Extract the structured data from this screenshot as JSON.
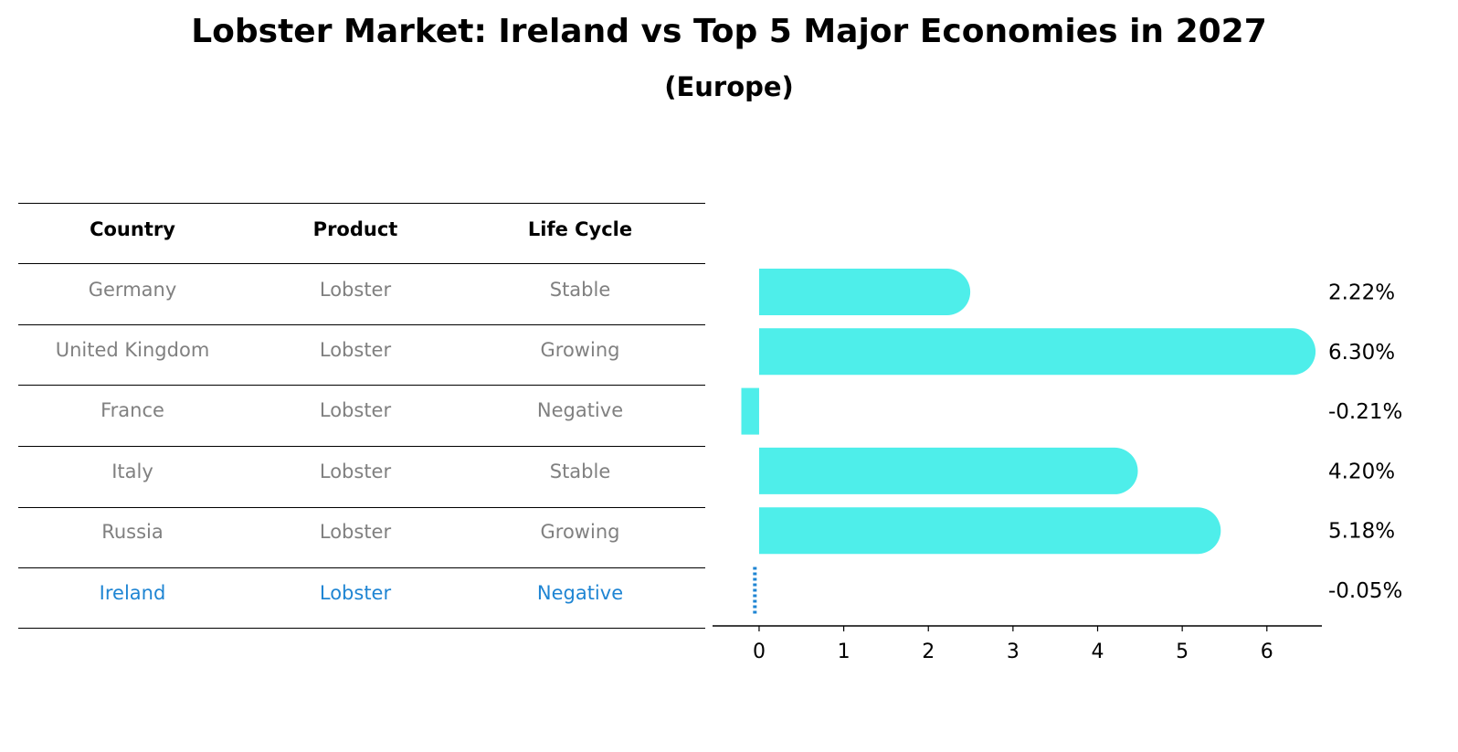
{
  "title": "Lobster Market: Ireland vs Top 5 Major Economies in 2027",
  "subtitle": "(Europe)",
  "table": {
    "headers": [
      "Country",
      "Product",
      "Life Cycle"
    ],
    "rows": [
      [
        "Germany",
        "Lobster",
        "Stable"
      ],
      [
        "United Kingdom",
        "Lobster",
        "Growing"
      ],
      [
        "France",
        "Lobster",
        "Negative"
      ],
      [
        "Italy",
        "Lobster",
        "Stable"
      ],
      [
        "Russia",
        "Lobster",
        "Growing"
      ],
      [
        "Ireland",
        "Lobster",
        "Negative"
      ]
    ],
    "highlight_row": 5,
    "highlight_color": "#1f85d3",
    "text_color": "#808080"
  },
  "chart_data": {
    "type": "bar",
    "orientation": "horizontal",
    "categories": [
      "Germany",
      "United Kingdom",
      "France",
      "Italy",
      "Russia",
      "Ireland"
    ],
    "values": [
      2.22,
      6.3,
      -0.21,
      4.2,
      5.18,
      -0.05
    ],
    "value_labels": [
      "2.22%",
      "6.30%",
      "-0.21%",
      "4.20%",
      "5.18%",
      "-0.05%"
    ],
    "xticks": [
      "0",
      "1",
      "2",
      "3",
      "4",
      "5",
      "6"
    ],
    "xlim": [
      -0.55,
      6.65
    ],
    "bar_color": "#4eeeea",
    "highlight_color": "#1f85d3",
    "highlight_index": 5
  }
}
